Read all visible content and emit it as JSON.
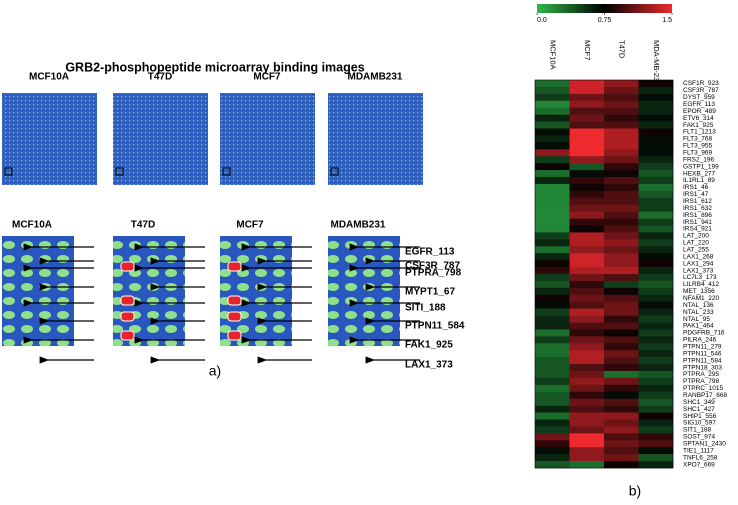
{
  "panel_a": {
    "title": "GRB2-phosphopeptide microarray binding images",
    "top_labels": [
      "MCF10A",
      "T47D",
      "MCF7",
      "MDAMB231"
    ],
    "zoom_labels": [
      "MCF10A",
      "T47D",
      "MCF7",
      "MDAMB231"
    ],
    "peptides": [
      "EGFR_113",
      "CSF3R_787",
      "PTPRA_798",
      "MYPT1_67",
      "SITI_188",
      "PTPN11_584",
      "FAK1_925",
      "LAX1_373"
    ],
    "caption": "a)"
  },
  "panel_b_caption": "b)",
  "chart_data": {
    "type": "heatmap",
    "categories": [
      "CSF1R_923",
      "CSF3R_787",
      "DYST_959",
      "EGFR_113",
      "EPOR_489",
      "ETV6_314",
      "FAK1_925",
      "FLT1_1213",
      "FLT3_768",
      "FLT3_955",
      "FLT3_969",
      "FRS2_196",
      "GSTP1_199",
      "HEXB_277",
      "IL1RL1_89",
      "IRS1_46",
      "IRS1_47",
      "IRS1_612",
      "IRS1_632",
      "IRS1_896",
      "IRS1_941",
      "IRS4_921",
      "LAT_200",
      "LAT_220",
      "LAT_255",
      "LAX1_268",
      "LAX1_294",
      "LAX1_373",
      "LC7L3_173",
      "LILRB4_412",
      "MET_1356",
      "NFAM1_220",
      "NTAL_136",
      "NTAL_233",
      "NTAL_95",
      "PAK1_464",
      "PDGFRB_716",
      "PILRA_246",
      "PTPN11_279",
      "PTPN11_546",
      "PTPN11_584",
      "PTPN18_303",
      "PTPRA_295",
      "PTPRA_798",
      "PTPRC_1015",
      "RANBP17_668",
      "SHC1_349",
      "SHC1_427",
      "SHIP1_556",
      "SIG10_597",
      "SIT1_188",
      "SOST_974",
      "SPTAN1_2430",
      "TIE1_1117",
      "TNFL6_258",
      "XPO7_669"
    ],
    "series": [
      {
        "name": "MCF10A",
        "values": [
          0.3,
          0.4,
          0.5,
          0.2,
          0.3,
          0.6,
          0.4,
          0.7,
          0.6,
          0.7,
          1.2,
          0.5,
          0.8,
          0.3,
          0.6,
          0.2,
          0.2,
          0.2,
          0.2,
          0.2,
          0.2,
          0.2,
          0.5,
          0.6,
          0.3,
          0.6,
          0.8,
          0.9,
          0.5,
          0.4,
          0.6,
          0.8,
          0.7,
          0.5,
          0.6,
          0.6,
          0.3,
          0.5,
          0.3,
          0.3,
          0.4,
          0.4,
          0.4,
          0.5,
          0.3,
          0.4,
          0.4,
          0.6,
          0.3,
          0.6,
          0.5,
          1.1,
          0.9,
          0.7,
          0.6,
          0.4
        ]
      },
      {
        "name": "MCF7",
        "values": [
          1.4,
          1.4,
          1.1,
          1.2,
          1.0,
          1.1,
          1.0,
          1.5,
          1.5,
          1.5,
          1.5,
          1.2,
          0.4,
          0.7,
          0.9,
          0.8,
          0.9,
          1.0,
          1.1,
          1.2,
          0.9,
          0.8,
          1.3,
          1.3,
          1.2,
          1.4,
          1.4,
          1.3,
          1.1,
          0.9,
          1.0,
          1.1,
          1.0,
          1.3,
          1.2,
          1.0,
          0.9,
          1.1,
          1.2,
          1.3,
          1.3,
          1.0,
          1.1,
          1.2,
          1.1,
          0.9,
          1.1,
          1.0,
          1.2,
          1.2,
          1.1,
          1.5,
          1.5,
          1.2,
          1.2,
          0.3
        ]
      },
      {
        "name": "T47D",
        "values": [
          1.2,
          1.1,
          1.0,
          1.1,
          1.0,
          0.9,
          1.0,
          1.3,
          1.3,
          1.3,
          1.2,
          1.1,
          0.9,
          0.8,
          1.0,
          0.9,
          1.0,
          1.0,
          1.1,
          1.0,
          0.9,
          1.0,
          1.1,
          1.2,
          1.1,
          1.2,
          1.2,
          1.3,
          1.0,
          0.5,
          0.8,
          1.0,
          1.1,
          1.1,
          0.9,
          1.0,
          0.8,
          1.0,
          0.9,
          1.1,
          1.0,
          0.9,
          0.3,
          1.1,
          0.9,
          0.7,
          1.0,
          0.9,
          1.2,
          1.1,
          1.2,
          1.0,
          1.1,
          1.0,
          1.1,
          0.8
        ]
      },
      {
        "name": "MDA-MB-231",
        "values": [
          0.8,
          0.6,
          0.7,
          0.6,
          0.6,
          0.7,
          0.6,
          0.8,
          0.7,
          0.7,
          0.7,
          0.6,
          0.5,
          0.4,
          0.5,
          0.3,
          0.4,
          0.5,
          0.5,
          0.3,
          0.5,
          0.4,
          0.6,
          0.5,
          0.6,
          0.7,
          0.8,
          0.6,
          0.5,
          0.4,
          0.5,
          0.6,
          0.7,
          0.6,
          0.5,
          0.6,
          0.5,
          0.6,
          0.5,
          0.6,
          0.5,
          0.6,
          0.4,
          0.5,
          0.6,
          0.5,
          0.4,
          0.5,
          0.8,
          0.6,
          0.5,
          0.9,
          1.0,
          0.7,
          0.4,
          0.6
        ]
      }
    ],
    "colors": [
      "#2fb84a",
      "#000000",
      "#ee2a2f"
    ],
    "zlim": [
      0,
      1.5
    ],
    "zticks": [
      {
        "value": 0,
        "label": "0.0"
      },
      0.75,
      1.5
    ]
  }
}
